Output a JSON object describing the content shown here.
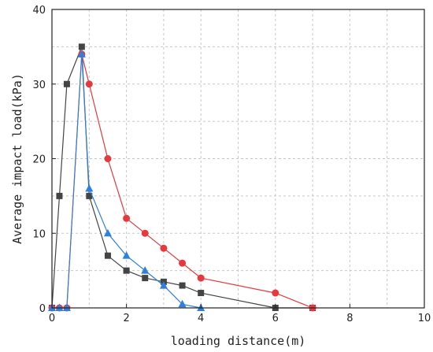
{
  "chart_data": {
    "type": "line",
    "title": "",
    "xlabel": "loading distance(m)",
    "ylabel": "Average impact load(kPa)",
    "xlim": [
      0,
      10
    ],
    "ylim": [
      0,
      40
    ],
    "xticks": [
      0,
      2,
      4,
      6,
      8,
      10
    ],
    "yticks": [
      0,
      10,
      20,
      30,
      40
    ],
    "grid": true,
    "legend": "none",
    "series": [
      {
        "color": "#444444",
        "marker": "square",
        "x": [
          0,
          0.2,
          0.4,
          0.8,
          1.0,
          1.5,
          2.0,
          2.5,
          3.0,
          3.5,
          4.0,
          6.0,
          7.0
        ],
        "y": [
          0,
          15,
          30,
          35,
          15,
          7,
          5,
          4,
          3.5,
          3,
          2,
          0,
          0
        ]
      },
      {
        "color": "#e8383d",
        "marker": "circle",
        "x": [
          0,
          0.2,
          0.4,
          0.8,
          1.0,
          1.5,
          2.0,
          2.5,
          3.0,
          3.5,
          4.0,
          6.0,
          7.0
        ],
        "y": [
          0,
          0,
          0,
          34,
          30,
          20,
          12,
          10,
          8,
          6,
          4,
          2,
          0
        ]
      },
      {
        "color": "#2f7fe0",
        "marker": "triangle",
        "x": [
          0,
          0.2,
          0.4,
          0.8,
          1.0,
          1.5,
          2.0,
          2.5,
          3.0,
          3.5,
          4.0
        ],
        "y": [
          0,
          0,
          0,
          34,
          16,
          10,
          7,
          5,
          3,
          0.5,
          0
        ]
      }
    ]
  }
}
